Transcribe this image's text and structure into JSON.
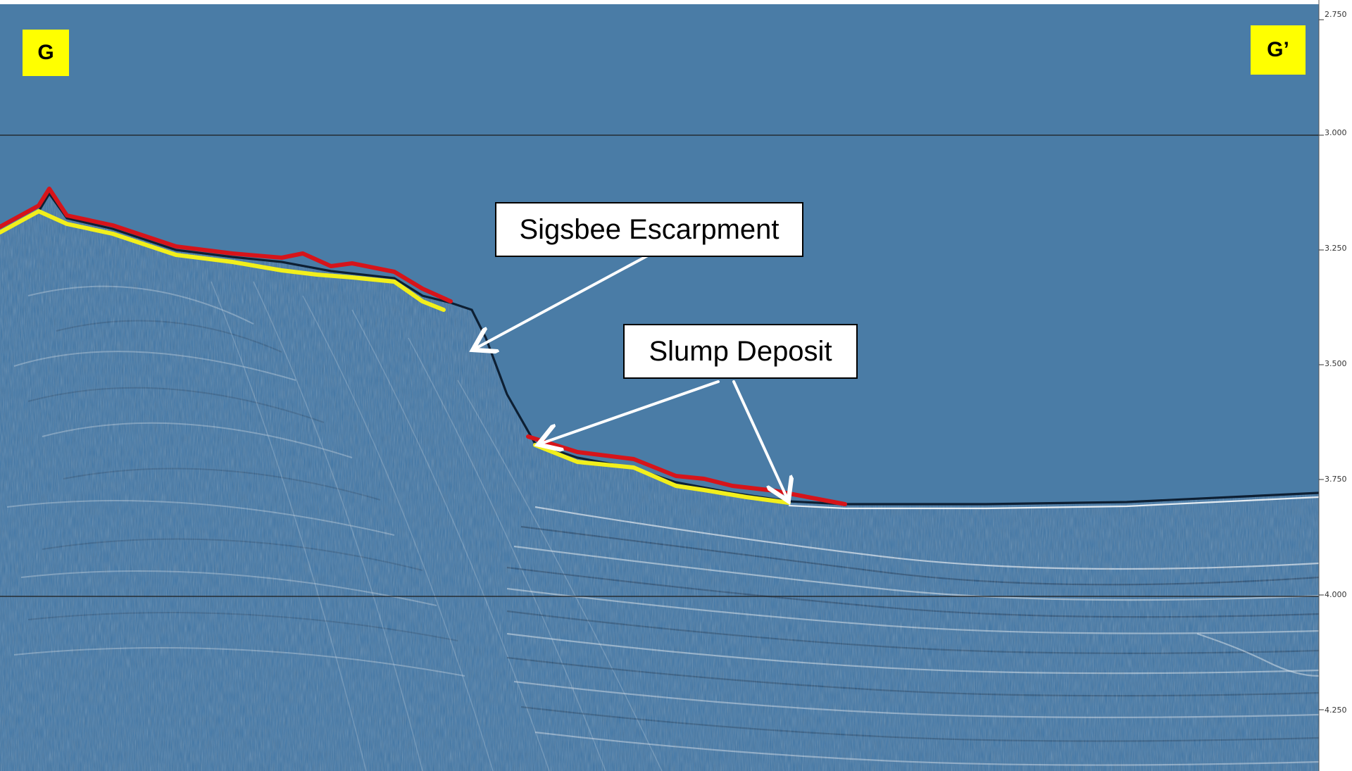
{
  "colors": {
    "water": "#4a7ca6",
    "sediment": "#3d74a5",
    "horizon_red": "#d6141a",
    "horizon_yellow": "#f2ef1c",
    "axis_strip": "#ffffff",
    "callout_bg": "#ffffff",
    "marker_bg": "#ffff00"
  },
  "markers": {
    "left": "G",
    "right": "G’"
  },
  "callouts": {
    "escarpment": "Sigsbee Escarpment",
    "slump": "Slump Deposit"
  },
  "time_axis": {
    "ticks": [
      "2.750",
      "3.000",
      "3.250",
      "3.500",
      "3.750",
      "4.000",
      "4.250"
    ]
  }
}
